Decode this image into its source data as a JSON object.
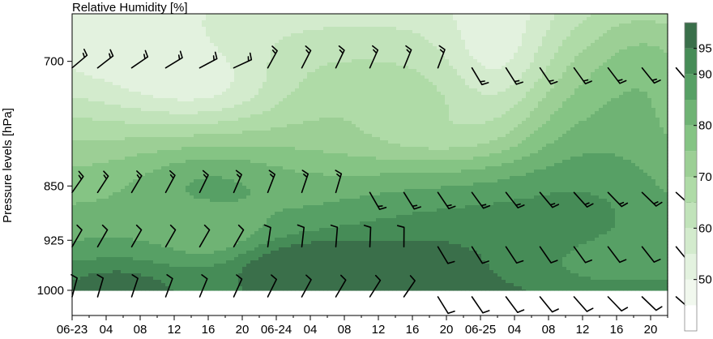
{
  "chart_data": {
    "type": "heatmap",
    "title": "Relative Humidity [%]",
    "ylabel": "Pressure levels [hPa]",
    "xlabel": "",
    "y_axis": {
      "ticks": [
        700,
        850,
        925,
        1000
      ],
      "labels": [
        "700",
        "850",
        "925",
        "1000"
      ],
      "inverted": true,
      "scale": "log",
      "range": [
        650,
        1040
      ]
    },
    "x_axis": {
      "start": "06-23 00",
      "step_hours": 4,
      "tick_labels": [
        "06-23",
        "04",
        "08",
        "12",
        "16",
        "20",
        "06-24",
        "04",
        "08",
        "12",
        "16",
        "20",
        "06-25",
        "04",
        "08",
        "12",
        "16",
        "20"
      ],
      "range_hours": [
        0,
        70
      ]
    },
    "colorbar": {
      "position": "right",
      "levels": [
        40,
        45,
        50,
        55,
        60,
        65,
        70,
        75,
        80,
        85,
        90,
        95,
        100
      ],
      "tick_labels": [
        "50",
        "60",
        "70",
        "80",
        "90",
        "95"
      ],
      "colors": [
        "#ffffff",
        "#f1f8ee",
        "#e3f2df",
        "#d3ebcd",
        "#c1e3ba",
        "#afdba7",
        "#9ccf95",
        "#85c484",
        "#6fb374",
        "#57a065",
        "#468c57",
        "#3a6f4a"
      ]
    },
    "data_extent": {
      "pressure_range": [
        650,
        1000
      ]
    },
    "wind_barbs": {
      "levels": [
        700,
        850,
        925,
        1000
      ],
      "times_hours": [
        0,
        3,
        7,
        11,
        15,
        19,
        23,
        27,
        31,
        35,
        39,
        43,
        47,
        51,
        55,
        59,
        63,
        67,
        71
      ]
    },
    "grid": false
  }
}
